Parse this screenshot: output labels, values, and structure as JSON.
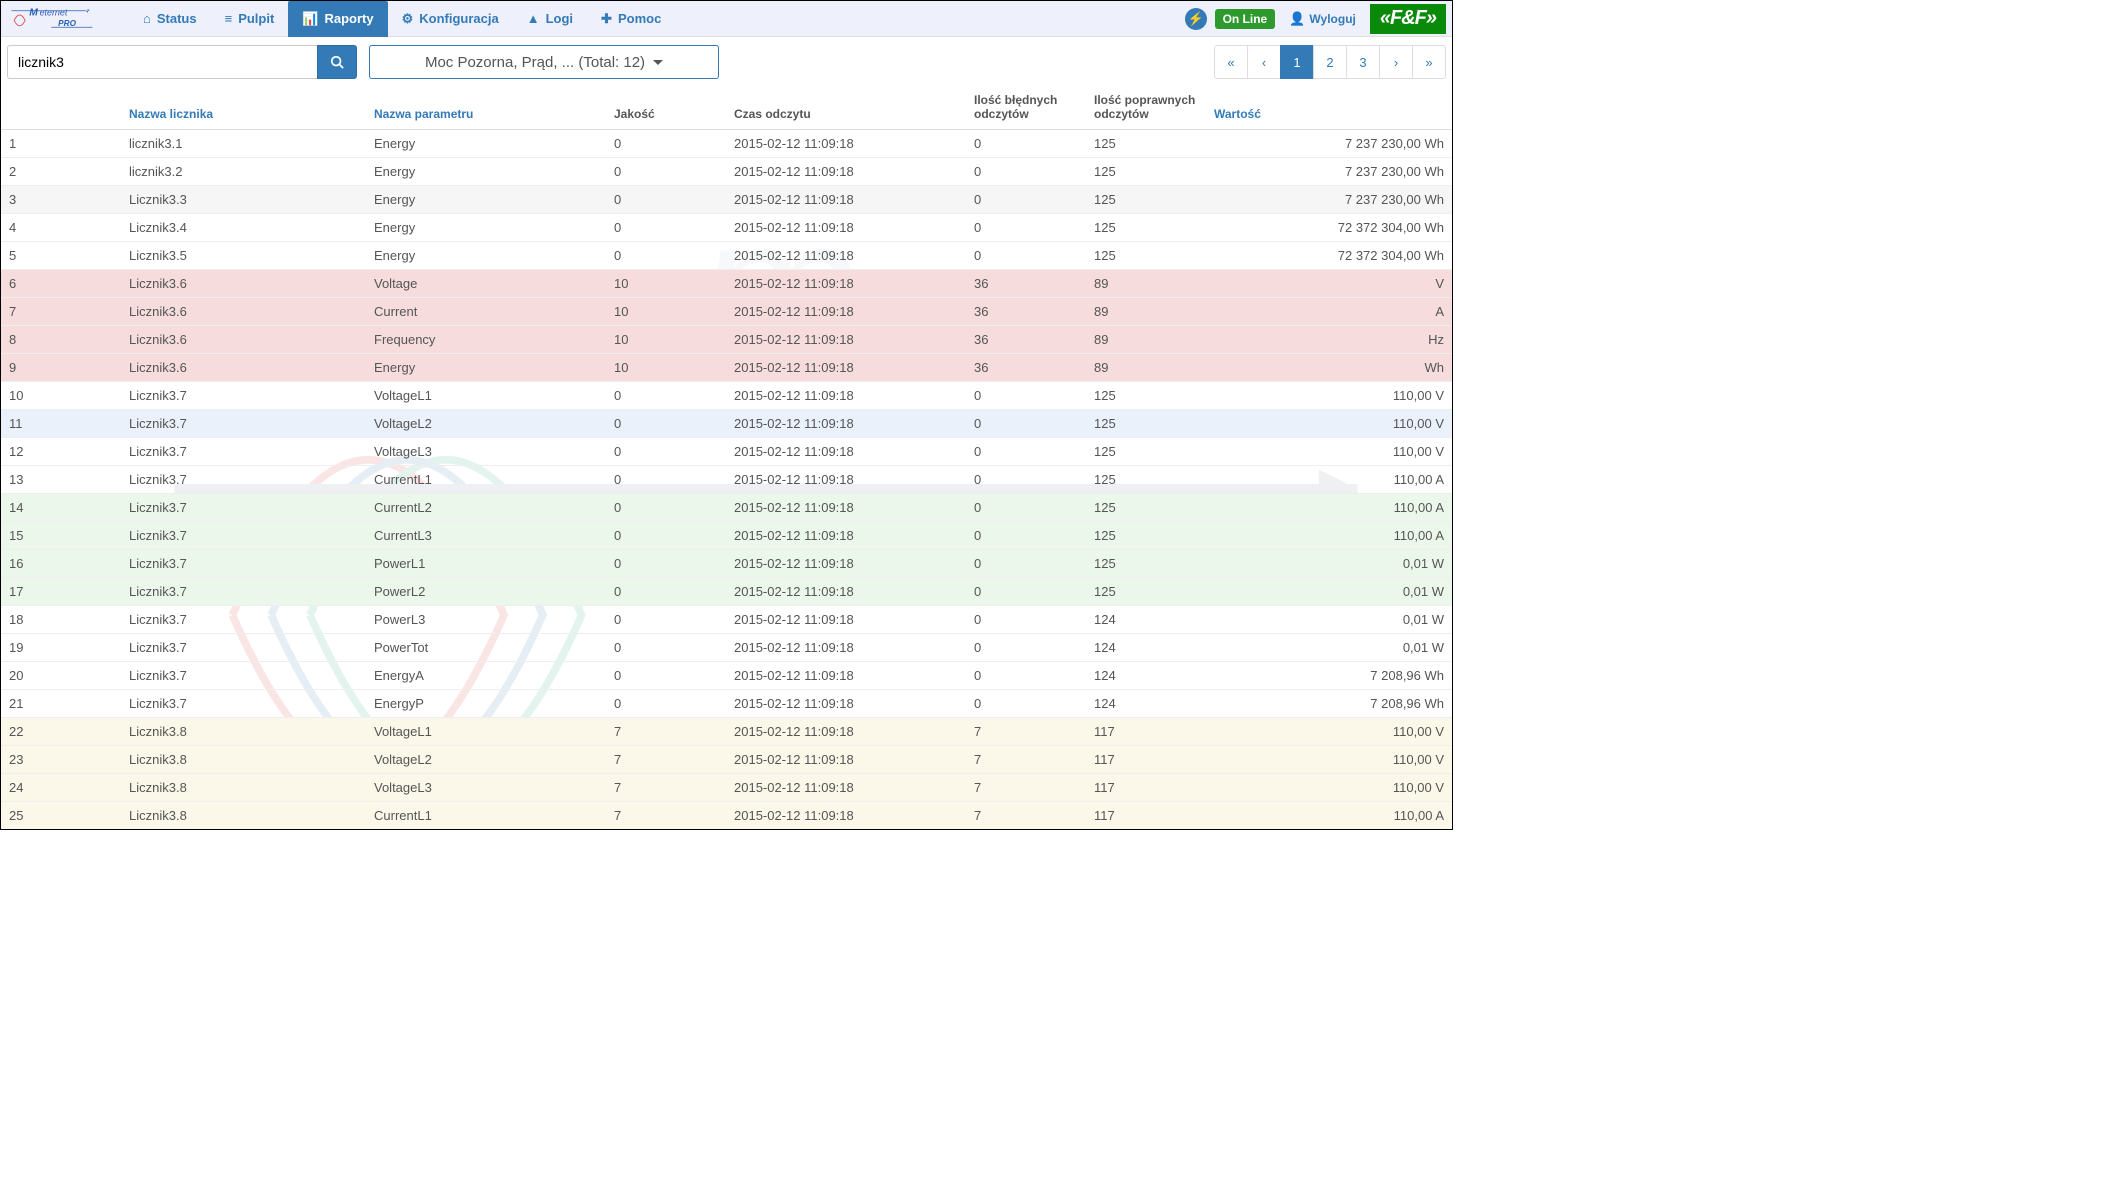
{
  "nav": {
    "brand_top": "Meternet",
    "brand_sub": "PRO",
    "tabs": [
      {
        "label": "Status",
        "icon": "⌂"
      },
      {
        "label": "Pulpit",
        "icon": "≡"
      },
      {
        "label": "Raporty",
        "icon": "📊",
        "active": true
      },
      {
        "label": "Konfiguracja",
        "icon": "⚙"
      },
      {
        "label": "Logi",
        "icon": "▲"
      },
      {
        "label": "Pomoc",
        "icon": "✚"
      }
    ],
    "online_label": "On Line",
    "logout_label": "Wyloguj",
    "ff_logo": "«F&F»"
  },
  "toolbar": {
    "search_value": "licznik3",
    "filter_label": "Moc Pozorna,   Prąd, ... (Total: 12)",
    "pages": [
      "«",
      "‹",
      "1",
      "2",
      "3",
      "›",
      "»"
    ],
    "active_page": "1"
  },
  "columns": {
    "idx": "",
    "name": "Nazwa licznika",
    "param": "Nazwa parametru",
    "quality": "Jakość",
    "time": "Czas odczytu",
    "bad": "Ilość błędnych odczytów",
    "good": "Ilość poprawnych odczytów",
    "value": "Wartość"
  },
  "rows": [
    {
      "i": "1",
      "name": "licznik3.1",
      "param": "Energy",
      "q": "0",
      "t": "2015-02-12 11:09:18",
      "bad": "0",
      "good": "125",
      "val": "7 237 230,00 Wh",
      "tint": ""
    },
    {
      "i": "2",
      "name": "licznik3.2",
      "param": "Energy",
      "q": "0",
      "t": "2015-02-12 11:09:18",
      "bad": "0",
      "good": "125",
      "val": "7 237 230,00 Wh",
      "tint": ""
    },
    {
      "i": "3",
      "name": "Licznik3.3",
      "param": "Energy",
      "q": "0",
      "t": "2015-02-12 11:09:18",
      "bad": "0",
      "good": "125",
      "val": "7 237 230,00 Wh",
      "tint": "gray"
    },
    {
      "i": "4",
      "name": "Licznik3.4",
      "param": "Energy",
      "q": "0",
      "t": "2015-02-12 11:09:18",
      "bad": "0",
      "good": "125",
      "val": "72 372 304,00 Wh",
      "tint": ""
    },
    {
      "i": "5",
      "name": "Licznik3.5",
      "param": "Energy",
      "q": "0",
      "t": "2015-02-12 11:09:18",
      "bad": "0",
      "good": "125",
      "val": "72 372 304,00 Wh",
      "tint": ""
    },
    {
      "i": "6",
      "name": "Licznik3.6",
      "param": "Voltage",
      "q": "10",
      "t": "2015-02-12 11:09:18",
      "bad": "36",
      "good": "89",
      "val": "V",
      "tint": "red"
    },
    {
      "i": "7",
      "name": "Licznik3.6",
      "param": "Current",
      "q": "10",
      "t": "2015-02-12 11:09:18",
      "bad": "36",
      "good": "89",
      "val": "A",
      "tint": "red"
    },
    {
      "i": "8",
      "name": "Licznik3.6",
      "param": "Frequency",
      "q": "10",
      "t": "2015-02-12 11:09:18",
      "bad": "36",
      "good": "89",
      "val": "Hz",
      "tint": "red"
    },
    {
      "i": "9",
      "name": "Licznik3.6",
      "param": "Energy",
      "q": "10",
      "t": "2015-02-12 11:09:18",
      "bad": "36",
      "good": "89",
      "val": "Wh",
      "tint": "red"
    },
    {
      "i": "10",
      "name": "Licznik3.7",
      "param": "VoltageL1",
      "q": "0",
      "t": "2015-02-12 11:09:18",
      "bad": "0",
      "good": "125",
      "val": "110,00 V",
      "tint": ""
    },
    {
      "i": "11",
      "name": "Licznik3.7",
      "param": "VoltageL2",
      "q": "0",
      "t": "2015-02-12 11:09:18",
      "bad": "0",
      "good": "125",
      "val": "110,00 V",
      "tint": "blue"
    },
    {
      "i": "12",
      "name": "Licznik3.7",
      "param": "VoltageL3",
      "q": "0",
      "t": "2015-02-12 11:09:18",
      "bad": "0",
      "good": "125",
      "val": "110,00 V",
      "tint": ""
    },
    {
      "i": "13",
      "name": "Licznik3.7",
      "param": "CurrentL1",
      "q": "0",
      "t": "2015-02-12 11:09:18",
      "bad": "0",
      "good": "125",
      "val": "110,00 A",
      "tint": ""
    },
    {
      "i": "14",
      "name": "Licznik3.7",
      "param": "CurrentL2",
      "q": "0",
      "t": "2015-02-12 11:09:18",
      "bad": "0",
      "good": "125",
      "val": "110,00 A",
      "tint": "green"
    },
    {
      "i": "15",
      "name": "Licznik3.7",
      "param": "CurrentL3",
      "q": "0",
      "t": "2015-02-12 11:09:18",
      "bad": "0",
      "good": "125",
      "val": "110,00 A",
      "tint": "green"
    },
    {
      "i": "16",
      "name": "Licznik3.7",
      "param": "PowerL1",
      "q": "0",
      "t": "2015-02-12 11:09:18",
      "bad": "0",
      "good": "125",
      "val": "0,01 W",
      "tint": "green"
    },
    {
      "i": "17",
      "name": "Licznik3.7",
      "param": "PowerL2",
      "q": "0",
      "t": "2015-02-12 11:09:18",
      "bad": "0",
      "good": "125",
      "val": "0,01 W",
      "tint": "green"
    },
    {
      "i": "18",
      "name": "Licznik3.7",
      "param": "PowerL3",
      "q": "0",
      "t": "2015-02-12 11:09:18",
      "bad": "0",
      "good": "124",
      "val": "0,01 W",
      "tint": ""
    },
    {
      "i": "19",
      "name": "Licznik3.7",
      "param": "PowerTot",
      "q": "0",
      "t": "2015-02-12 11:09:18",
      "bad": "0",
      "good": "124",
      "val": "0,01 W",
      "tint": ""
    },
    {
      "i": "20",
      "name": "Licznik3.7",
      "param": "EnergyA",
      "q": "0",
      "t": "2015-02-12 11:09:18",
      "bad": "0",
      "good": "124",
      "val": "7 208,96 Wh",
      "tint": ""
    },
    {
      "i": "21",
      "name": "Licznik3.7",
      "param": "EnergyP",
      "q": "0",
      "t": "2015-02-12 11:09:18",
      "bad": "0",
      "good": "124",
      "val": "7 208,96 Wh",
      "tint": ""
    },
    {
      "i": "22",
      "name": "Licznik3.8",
      "param": "VoltageL1",
      "q": "7",
      "t": "2015-02-12 11:09:18",
      "bad": "7",
      "good": "117",
      "val": "110,00 V",
      "tint": "yell"
    },
    {
      "i": "23",
      "name": "Licznik3.8",
      "param": "VoltageL2",
      "q": "7",
      "t": "2015-02-12 11:09:18",
      "bad": "7",
      "good": "117",
      "val": "110,00 V",
      "tint": "yell"
    },
    {
      "i": "24",
      "name": "Licznik3.8",
      "param": "VoltageL3",
      "q": "7",
      "t": "2015-02-12 11:09:18",
      "bad": "7",
      "good": "117",
      "val": "110,00 V",
      "tint": "yell"
    },
    {
      "i": "25",
      "name": "Licznik3.8",
      "param": "CurrentL1",
      "q": "7",
      "t": "2015-02-12 11:09:18",
      "bad": "7",
      "good": "117",
      "val": "110,00 A",
      "tint": "yell"
    }
  ]
}
